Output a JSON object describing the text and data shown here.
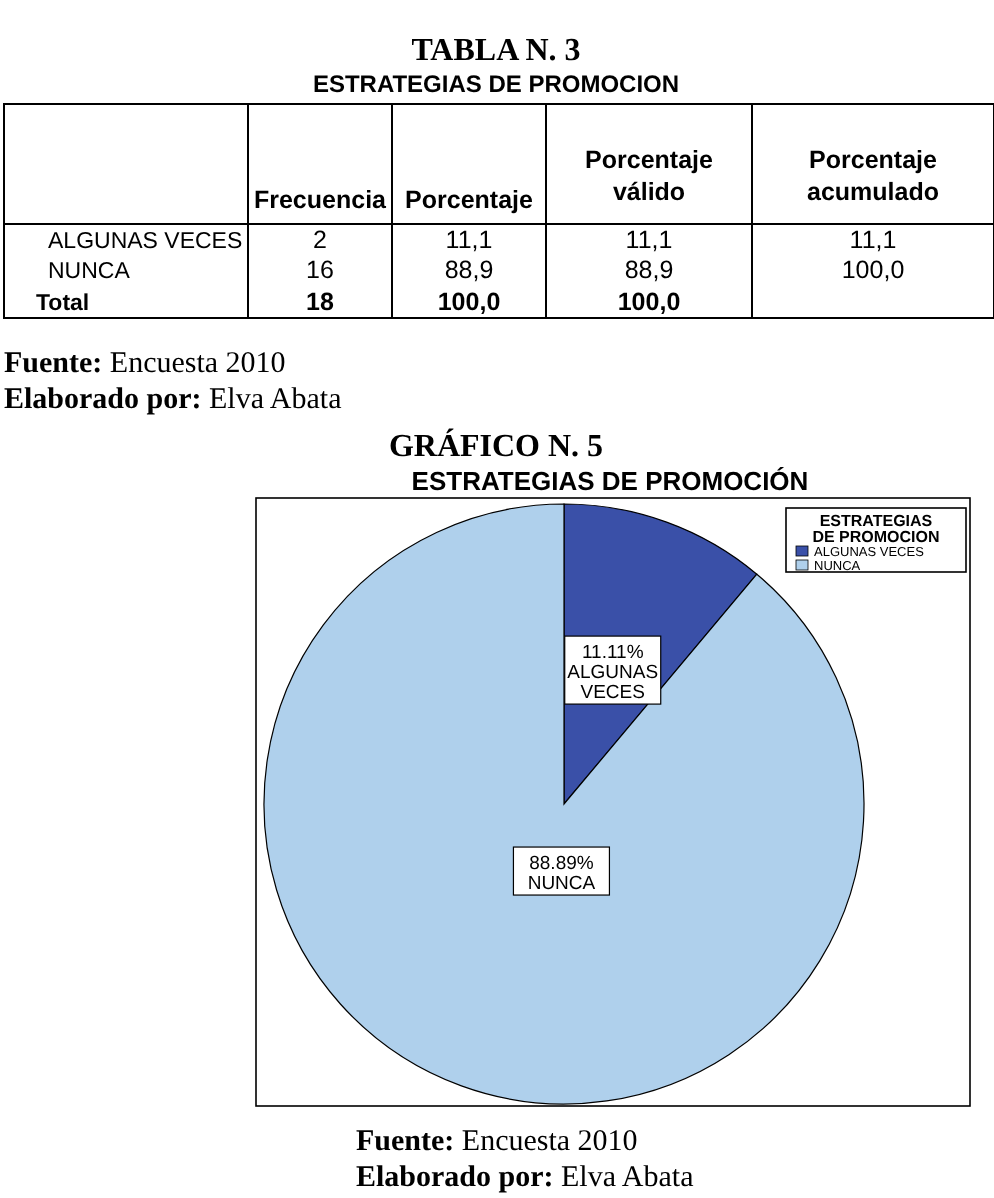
{
  "chart_data": [
    {
      "type": "other",
      "title": "TABLA N. 3",
      "subtitle": "ESTRATEGIAS DE PROMOCION",
      "annotations": [
        "Frecuencia",
        "Porcentaje",
        "Porcentaje válido",
        "Porcentaje acumulado",
        "ALGUNAS VECES",
        "2",
        "11,1",
        "11,1",
        "11,1",
        "NUNCA",
        "16",
        "88,9",
        "88,9",
        "100,0",
        "Total",
        "18",
        "100,0",
        "100,0",
        "Fuente: Encuesta 2010",
        "Elaborado por: Elva Abata"
      ]
    },
    {
      "type": "pie",
      "title": "GRÁFICO N. 5",
      "subtitle": "ESTRATEGIAS DE PROMOCIÓN",
      "categories": [
        "ALGUNAS VECES",
        "NUNCA"
      ],
      "values": [
        11.11,
        88.89
      ],
      "colors": [
        "#3a50a8",
        "#afd0ec"
      ],
      "value_labels": [
        "11.11%",
        "88.89%"
      ],
      "legend_title": "ESTRATEGIAS DE PROMOCION",
      "legend": "top right",
      "annotations": [
        "Fuente: Encuesta 2010",
        "Elaborado por: Elva Abata"
      ]
    }
  ]
}
